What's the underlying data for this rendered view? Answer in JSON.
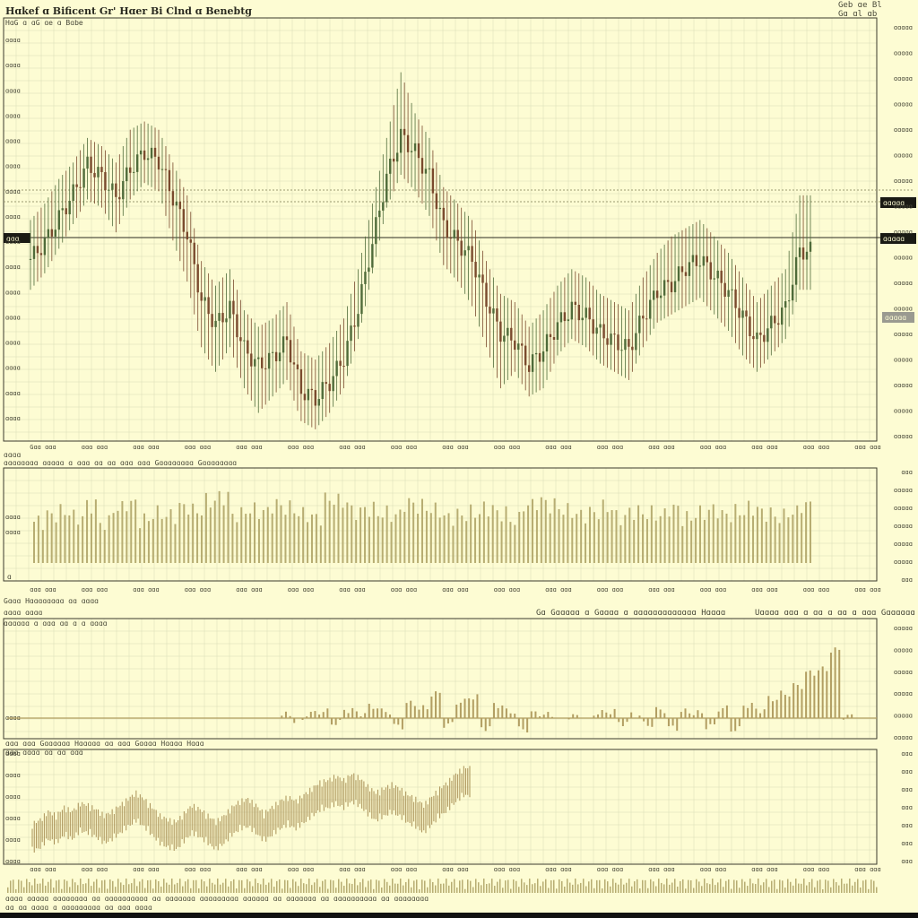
{
  "header": {
    "title": "Hɑkef ɑ Bificent Gr' Hɑer Bi Clnd ɑ Benebtg",
    "subtitle": "HɑG ɑ ɑG ɑe ɑ Bɑbe",
    "top_right_1": "Geb ɑe Bl",
    "top_right_2": "Gɑ ɑl ɑb"
  },
  "price_panel": {
    "left_tag": "ɑɑɑ",
    "right_tags": [
      "ɑɑɑɑɑ",
      "ɑɑɑɑɑ",
      "ɑɑɑɑɑ"
    ],
    "y_ticks_left": [
      "ɑɑɑɑ",
      "ɑɑɑɑ",
      "ɑɑɑɑ",
      "ɑɑɑɑ",
      "ɑɑɑɑ",
      "ɑɑɑɑ",
      "ɑɑɑɑ",
      "ɑɑɑɑ",
      "ɑɑɑɑ",
      "ɑɑɑɑ",
      "ɑɑɑɑ",
      "ɑɑɑɑ",
      "ɑɑɑɑ",
      "ɑɑɑɑ",
      "ɑɑɑɑ",
      "ɑɑɑɑ"
    ],
    "y_ticks_right": [
      "ɑɑɑɑɑ",
      "ɑɑɑɑɑ",
      "ɑɑɑɑɑ",
      "ɑɑɑɑɑ",
      "ɑɑɑɑɑ",
      "ɑɑɑɑɑ",
      "ɑɑɑɑɑ",
      "ɑɑɑɑɑ",
      "ɑɑɑɑɑ",
      "ɑɑɑɑɑ",
      "ɑɑɑɑɑ",
      "ɑɑɑɑɑ",
      "ɑɑɑɑɑ",
      "ɑɑɑɑɑ",
      "ɑɑɑɑɑ",
      "ɑɑɑɑɑ",
      "ɑɑɑɑɑ"
    ],
    "x_ticks": [
      "Gɑɑ ɑɑɑ",
      "ɑɑɑ ɑɑɑ",
      "ɑɑɑ ɑɑɑ",
      "ɑɑɑ ɑɑɑ",
      "ɑɑɑ ɑɑɑ",
      "ɑɑɑ ɑɑɑ",
      "ɑɑɑ ɑɑɑ",
      "ɑɑɑ ɑɑɑ",
      "ɑɑɑ ɑɑɑ",
      "ɑɑɑ ɑɑɑ",
      "ɑɑɑ ɑɑɑ",
      "ɑɑɑ ɑɑɑ",
      "ɑɑɑ ɑɑɑ",
      "ɑɑɑ ɑɑɑ",
      "ɑɑɑ ɑɑɑ",
      "ɑɑɑ ɑɑɑ",
      "ɑɑɑ ɑɑɑ"
    ]
  },
  "volume_panel": {
    "label_1": "ɑɑɑɑ",
    "label_2": "ɑɑɑɑɑɑɑɑ ɑɑɑɑɑ ɑ ɑɑɑ ɑɑ ɑɑ ɑɑɑ ɑɑɑ Gɑɑɑɑɑɑɑɑ Gɑɑɑɑɑɑɑɑ",
    "zero_label": "ɑ",
    "y_ticks_left": [
      "ɑɑɑɑ",
      "ɑɑɑɑ"
    ],
    "y_ticks_right": [
      "ɑɑɑ",
      "ɑɑɑɑɑ",
      "ɑɑɑɑɑ",
      "ɑɑɑɑɑ",
      "ɑɑɑɑɑ",
      "ɑɑɑɑɑ",
      "ɑɑɑ"
    ],
    "x_ticks": [
      "ɑɑɑ ɑɑɑ",
      "ɑɑɑ ɑɑɑ",
      "ɑɑɑ ɑɑɑ",
      "ɑɑɑ ɑɑɑ",
      "ɑɑɑ ɑɑɑ",
      "ɑɑɑ ɑɑɑ",
      "ɑɑɑ ɑɑɑ",
      "ɑɑɑ ɑɑɑ",
      "ɑɑɑ ɑɑɑ",
      "ɑɑɑ ɑɑɑ",
      "ɑɑɑ ɑɑɑ",
      "ɑɑɑ ɑɑɑ",
      "ɑɑɑ ɑɑɑ",
      "ɑɑɑ ɑɑɑ",
      "ɑɑɑ ɑɑɑ",
      "ɑɑɑ ɑɑɑ",
      "ɑɑɑ ɑɑɑ"
    ]
  },
  "oscillator_panel": {
    "label_1": "Gɑɑɑ Hɑɑɑɑɑɑɑɑ ɑɑ ɑɑɑɑ",
    "label_2": "ɑɑɑɑ ɑɑɑɑ",
    "label_3": "ɑɑɑɑɑɑ ɑ ɑɑɑ ɑɑ ɑ ɑ ɑɑɑɑ",
    "center_title": "Gɑ Gɑɑɑɑɑ ɑ Gɑɑɑɑ ɑ ɑɑɑɑɑɑɑɑɑɑɑɑɑ Hɑɑɑɑ",
    "right_title": "Uɑɑɑɑ ɑɑɑ ɑ ɑɑ ɑ ɑɑ ɑ ɑɑɑ Gɑɑɑɑɑɑ",
    "y_ticks_left": [
      "ɑɑɑɑ"
    ],
    "y_ticks_right": [
      "ɑɑɑɑɑ",
      "ɑɑɑɑɑ",
      "ɑɑɑɑɑ",
      "ɑɑɑɑɑ",
      "ɑɑɑɑɑ",
      "ɑɑɑɑɑ"
    ]
  },
  "indicator_panel": {
    "label": "ɑɑɑ ɑɑɑ Gɑɑɑɑɑɑ Hɑɑɑɑɑ ɑɑ ɑɑɑ Gɑɑɑɑ Hɑɑɑɑ Hɑɑɑ",
    "sub_label": "ɑɑɑ ɑɑɑɑ ɑɑ ɑɑ ɑɑɑ",
    "y_ticks_left": [
      "ɑɑɑɑ",
      "ɑɑɑɑ",
      "ɑɑɑɑ",
      "ɑɑɑɑ",
      "ɑɑɑɑ",
      "ɑɑɑɑ"
    ],
    "y_ticks_right": [
      "ɑɑɑ",
      "ɑɑɑ",
      "ɑɑɑ",
      "ɑɑɑ",
      "ɑɑɑ",
      "ɑɑɑ",
      "ɑɑɑ"
    ],
    "x_ticks": [
      "ɑɑɑ ɑɑɑ",
      "ɑɑɑ ɑɑɑ",
      "ɑɑɑ ɑɑɑ",
      "ɑɑɑ ɑɑɑ",
      "ɑɑɑ ɑɑɑ",
      "ɑɑɑ ɑɑɑ",
      "ɑɑɑ ɑɑɑ",
      "ɑɑɑ ɑɑɑ",
      "ɑɑɑ ɑɑɑ",
      "ɑɑɑ ɑɑɑ",
      "ɑɑɑ ɑɑɑ",
      "ɑɑɑ ɑɑɑ",
      "ɑɑɑ ɑɑɑ",
      "ɑɑɑ ɑɑɑ",
      "ɑɑɑ ɑɑɑ",
      "ɑɑɑ ɑɑɑ",
      "ɑɑɑ ɑɑɑ"
    ]
  },
  "footer": {
    "line_1": "ɑɑɑɑ ɑɑɑɑɑ ɑɑɑɑɑɑɑɑ ɑɑ ɑɑɑɑɑɑɑɑɑɑ ɑɑ ɑɑɑɑɑɑɑ ɑɑɑɑɑɑɑɑɑ ɑɑɑɑɑɑ ɑɑ ɑɑɑɑɑɑɑ ɑɑ ɑɑɑɑɑɑɑɑɑɑ ɑɑ ɑɑɑɑɑɑɑɑ",
    "line_2": "ɑɑ ɑɑ ɑɑɑɑ ɑ ɑɑɑɑɑɑɑɑɑ ɑɑ ɑɑɑ ɑɑɑɑ"
  },
  "colors": {
    "background": "#fdfcd3",
    "candle_up": "#4f6b3a",
    "candle_down": "#7a4a2e",
    "volume": "#b7ad72",
    "oscillator": "#b29e62",
    "indicator": "#a88f55",
    "grid": "#d9dcb6",
    "axis": "#3a3a2e"
  },
  "chart_data": [
    {
      "type": "candlestick",
      "panel": "price",
      "x": [
        0,
        4,
        8,
        12,
        16,
        20,
        24,
        28,
        32,
        36,
        40,
        44,
        48,
        52,
        56,
        60,
        64,
        68,
        72,
        76,
        80,
        84,
        88,
        92,
        96,
        100,
        104,
        108,
        112,
        116,
        120,
        124,
        128,
        132,
        136,
        140,
        144,
        148,
        152,
        156,
        160,
        164,
        168,
        172,
        176,
        180,
        184,
        188,
        192,
        196,
        200,
        204,
        208,
        212,
        216
      ],
      "close": [
        40,
        44,
        50,
        56,
        63,
        60,
        55,
        62,
        66,
        64,
        55,
        46,
        30,
        24,
        28,
        18,
        14,
        16,
        20,
        8,
        6,
        10,
        16,
        28,
        44,
        60,
        70,
        66,
        60,
        48,
        44,
        40,
        30,
        22,
        20,
        14,
        18,
        24,
        28,
        26,
        22,
        20,
        18,
        26,
        32,
        34,
        38,
        40,
        36,
        32,
        26,
        20,
        24,
        28,
        42
      ],
      "high": [
        48,
        52,
        58,
        62,
        68,
        66,
        62,
        70,
        72,
        70,
        62,
        54,
        38,
        32,
        36,
        26,
        22,
        24,
        28,
        16,
        14,
        18,
        24,
        36,
        52,
        68,
        84,
        74,
        68,
        56,
        52,
        48,
        38,
        30,
        28,
        22,
        26,
        32,
        36,
        34,
        30,
        28,
        26,
        34,
        40,
        44,
        46,
        48,
        44,
        40,
        34,
        28,
        32,
        36,
        54
      ],
      "low": [
        34,
        38,
        44,
        50,
        56,
        54,
        48,
        56,
        60,
        58,
        46,
        36,
        20,
        14,
        20,
        10,
        4,
        8,
        12,
        2,
        0,
        4,
        10,
        22,
        38,
        54,
        62,
        58,
        52,
        40,
        36,
        30,
        20,
        10,
        14,
        8,
        10,
        18,
        22,
        20,
        16,
        14,
        12,
        20,
        26,
        28,
        30,
        32,
        28,
        24,
        18,
        14,
        18,
        22,
        34
      ],
      "ylim": [
        0,
        90
      ]
    },
    {
      "type": "bar",
      "panel": "volume",
      "values": [
        50,
        58,
        62,
        55,
        70,
        48,
        66,
        72,
        52,
        60,
        57,
        68,
        63,
        75,
        80,
        58,
        64,
        62,
        70,
        66,
        59,
        55,
        77,
        74,
        62,
        65,
        60,
        58,
        72,
        68,
        64,
        55,
        58,
        61,
        66,
        60,
        52,
        70,
        74,
        69,
        63,
        58,
        61,
        67,
        55,
        62,
        60,
        58,
        66,
        54,
        60,
        64,
        58,
        62,
        66,
        60,
        56,
        61,
        70
      ],
      "ylim": [
        0,
        100
      ]
    },
    {
      "type": "bar",
      "panel": "oscillator",
      "values": [
        0,
        0,
        0,
        0,
        0,
        0,
        0,
        0,
        0,
        0,
        0,
        0,
        0,
        0,
        0,
        0,
        0,
        0,
        0,
        0,
        0,
        0,
        4,
        -3,
        6,
        8,
        -6,
        10,
        6,
        14,
        8,
        -10,
        18,
        12,
        30,
        -8,
        20,
        26,
        -12,
        16,
        8,
        -14,
        6,
        4,
        0,
        2,
        0,
        6,
        8,
        -6,
        4,
        -8,
        10,
        -12,
        8,
        6,
        -10,
        12,
        -14,
        16,
        10,
        24,
        30,
        40,
        56,
        60,
        84,
        2,
        0,
        0
      ],
      "ylim": [
        -30,
        100
      ]
    },
    {
      "type": "line",
      "panel": "indicator",
      "values": [
        22,
        26,
        34,
        30,
        38,
        34,
        42,
        40,
        36,
        30,
        34,
        40,
        46,
        52,
        46,
        38,
        30,
        26,
        24,
        32,
        40,
        36,
        30,
        24,
        30,
        38,
        44,
        46,
        40,
        32,
        38,
        44,
        48,
        44,
        50,
        56,
        62,
        64,
        68,
        64,
        70,
        66,
        58,
        52,
        56,
        60,
        56,
        50,
        46,
        40,
        48,
        56,
        62,
        70,
        76
      ],
      "ylim": [
        0,
        100
      ]
    }
  ]
}
